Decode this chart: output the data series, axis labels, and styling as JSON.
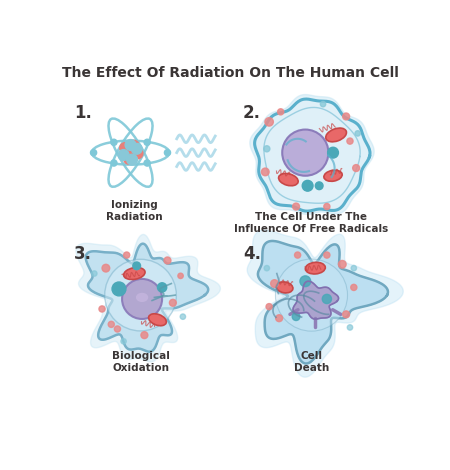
{
  "title": "The Effect Of Radiation On The Human Cell",
  "title_color": "#3a3535",
  "title_fontsize": 10.0,
  "bg_color": "#ffffff",
  "labels": {
    "1": "1.",
    "2": "2.",
    "3": "3.",
    "4": "4."
  },
  "captions": {
    "1": "Ionizing\nRadiation",
    "2": "The Cell Under The\nInfluence Of Free Radicals",
    "3": "Biological\nOxidation",
    "4": "Cell\nDeath"
  },
  "atom_orbit_color": "#7ec8d8",
  "atom_nucleus_red": "#e8807a",
  "atom_nucleus_blue": "#88c8d8",
  "wave_color": "#a8d8e8",
  "cell1_fill": "#dff0f8",
  "cell1_border": "#5ab0cc",
  "cell1_inner_border": "#5ab0cc",
  "nucleus1_fill": "#b8aad8",
  "nucleus1_border": "#8878b8",
  "mito_fill": "#e86868",
  "mito_border": "#c84848",
  "mito_line": "#c84848",
  "blue_dot": "#4aa8b8",
  "pink_dot": "#e88888",
  "cyan_dot": "#88c8d8",
  "cell2_fill": "#c8e8f5",
  "cell2_border": "#7ab8cc",
  "cell3_fill": "#c0e0f0",
  "cell3_border": "#78b0c8",
  "nucleus3_fill": "#b0a0cc",
  "cell4_fill": "#b8ddf0",
  "cell4_border": "#70a8c0",
  "nucleus4_fill": "#a898c8",
  "caption_fontsize": 7.5,
  "label_fontsize": 12
}
